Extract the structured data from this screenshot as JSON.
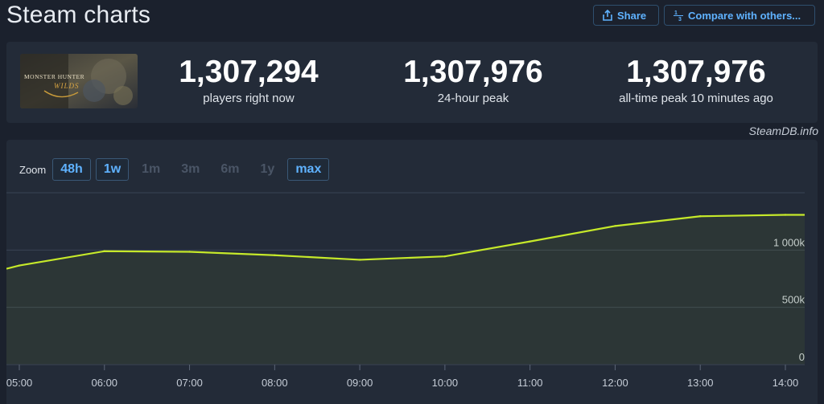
{
  "header": {
    "title": "Steam charts",
    "share_label": "Share",
    "compare_label": "Compare with others..."
  },
  "stats": [
    {
      "value": "1,307,294",
      "label": "players right now"
    },
    {
      "value": "1,307,976",
      "label": "24-hour peak"
    },
    {
      "value": "1,307,976",
      "label": "all-time peak 10 minutes ago"
    }
  ],
  "game_logo": {
    "line1": "MONSTER HUNTER",
    "line2": "WILDS"
  },
  "credit": "SteamDB.info",
  "zoom": {
    "label": "Zoom",
    "options": [
      {
        "label": "48h",
        "active": true
      },
      {
        "label": "1w",
        "active": true
      },
      {
        "label": "1m",
        "active": false
      },
      {
        "label": "3m",
        "active": false
      },
      {
        "label": "6m",
        "active": false
      },
      {
        "label": "1y",
        "active": false
      },
      {
        "label": "max",
        "active": true
      }
    ]
  },
  "colors": {
    "line": "#c6e92a",
    "accent": "#5fb2ff"
  },
  "chart_data": {
    "type": "area",
    "x": [
      "05:00",
      "06:00",
      "07:00",
      "08:00",
      "09:00",
      "10:00",
      "11:00",
      "12:00",
      "13:00",
      "14:00"
    ],
    "values": [
      865000,
      990000,
      985000,
      955000,
      915000,
      945000,
      1075000,
      1210000,
      1295000,
      1307294
    ],
    "y_ticks": [
      {
        "value": 0,
        "label": "0"
      },
      {
        "value": 500000,
        "label": "500k"
      },
      {
        "value": 1000000,
        "label": "1 000k"
      }
    ],
    "ylim": [
      0,
      1500000
    ],
    "grid": true
  }
}
